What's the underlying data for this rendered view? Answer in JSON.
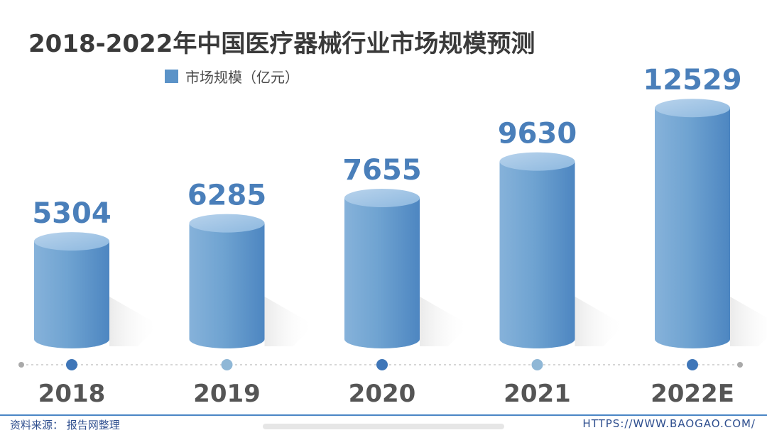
{
  "chart_data": {
    "type": "bar",
    "title": "2018-2022年中国医疗器械行业市场规模预测",
    "categories": [
      "2018",
      "2019",
      "2020",
      "2021",
      "2022E"
    ],
    "series": [
      {
        "name": "市场规模（亿元）",
        "values": [
          5304,
          6285,
          7655,
          9630,
          12529
        ]
      }
    ],
    "data_labels": [
      "5304",
      "6285",
      "7655",
      "9630",
      "12529"
    ],
    "legend_position": "top-left",
    "grid": false,
    "ylim": [
      0,
      13000
    ]
  },
  "footer": {
    "source": "资料来源：    报告网整理",
    "website": "HTTPS://WWW.BAOGAO.COM/"
  },
  "colors": {
    "bar": "#5b93c8",
    "bar_dark": "#3f79b8",
    "bar_light": "#9cc1e3",
    "label": "#4a7fba",
    "dot_dark": "#3f76b8",
    "dot_light": "#8fb7d6",
    "axis": "#c9c9c9",
    "year": "#555555"
  }
}
